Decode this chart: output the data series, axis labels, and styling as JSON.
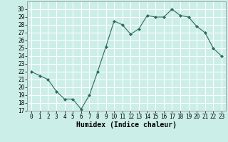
{
  "x": [
    0,
    1,
    2,
    3,
    4,
    5,
    6,
    7,
    8,
    9,
    10,
    11,
    12,
    13,
    14,
    15,
    16,
    17,
    18,
    19,
    20,
    21,
    22,
    23
  ],
  "y": [
    22,
    21.5,
    21,
    19.5,
    18.5,
    18.5,
    17.2,
    19,
    22,
    25.2,
    28.5,
    28,
    26.8,
    27.5,
    29.2,
    29,
    29,
    30,
    29.2,
    29,
    27.8,
    27,
    25,
    24
  ],
  "xlabel": "Humidex (Indice chaleur)",
  "xlim": [
    -0.5,
    23.5
  ],
  "ylim": [
    17,
    31
  ],
  "yticks": [
    17,
    18,
    19,
    20,
    21,
    22,
    23,
    24,
    25,
    26,
    27,
    28,
    29,
    30
  ],
  "xticks": [
    0,
    1,
    2,
    3,
    4,
    5,
    6,
    7,
    8,
    9,
    10,
    11,
    12,
    13,
    14,
    15,
    16,
    17,
    18,
    19,
    20,
    21,
    22,
    23
  ],
  "line_color": "#2e6b5e",
  "marker": "D",
  "marker_size": 2.0,
  "bg_color": "#cceee8",
  "grid_color": "#ffffff",
  "xlabel_fontsize": 7.0,
  "tick_fontsize": 5.5
}
